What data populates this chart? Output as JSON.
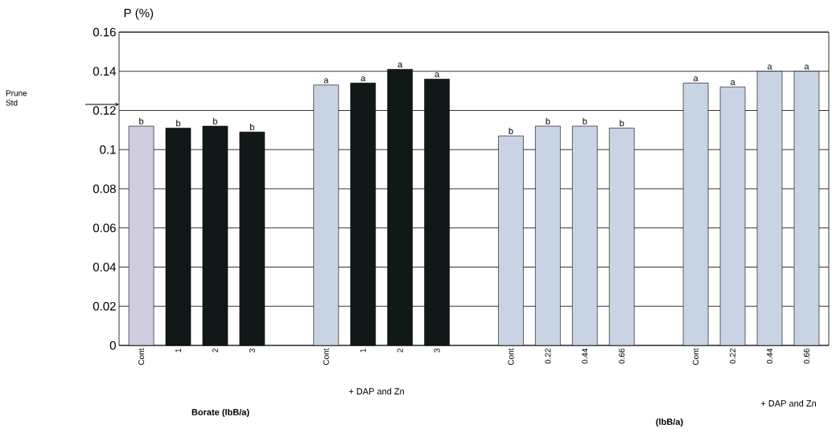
{
  "chart_data": {
    "type": "bar",
    "ylabel": "P (%)",
    "categories": [
      "Cont",
      "1",
      "2",
      "3",
      null,
      "Cont",
      "1",
      "2",
      "3",
      null,
      "Cont",
      "0.22",
      "0.44",
      "0.66",
      null,
      "Cont",
      "0.22",
      "0.44",
      "0.66"
    ],
    "values": [
      0.112,
      0.111,
      0.112,
      0.109,
      null,
      0.133,
      0.134,
      0.141,
      0.136,
      null,
      0.107,
      0.112,
      0.112,
      0.111,
      null,
      0.134,
      0.132,
      0.14,
      0.14
    ],
    "colors": [
      "#d0cce0",
      "#101818",
      "#101818",
      "#101818",
      "#ffffff",
      "#c8d4e4",
      "#101818",
      "#101818",
      "#101818",
      "#ffffff",
      "#c8d4e4",
      "#c8d4e4",
      "#c8d4e4",
      "#c8d4e4",
      "#ffffff",
      "#c8d4e4",
      "#c8d4e4",
      "#c8d4e4",
      "#c8d4e4"
    ],
    "value_labels": [
      "b",
      "b",
      "b",
      "b",
      null,
      "a",
      "a",
      "a",
      "a",
      null,
      "b",
      "b",
      "b",
      "b",
      null,
      "a",
      "a",
      "a",
      "a"
    ],
    "ylim": [
      0,
      0.16
    ],
    "yticks": [
      0,
      0.02,
      0.04,
      0.06,
      0.08,
      0.1,
      0.12,
      0.14,
      0.16
    ],
    "grid": "y",
    "annotations": [
      "+ DAP and Zn",
      "+ DAP and Zn",
      "Borate (lbB/a)",
      "(lbB/a)",
      "Prune Std"
    ]
  }
}
